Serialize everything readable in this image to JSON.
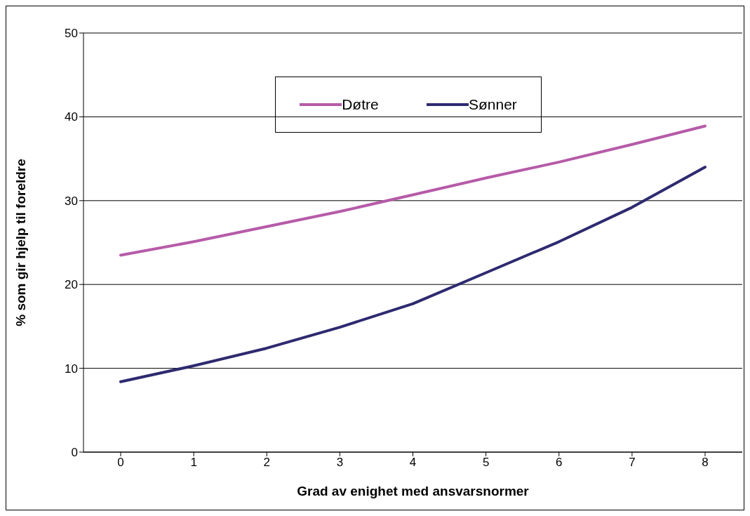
{
  "chart_data": {
    "type": "line",
    "xlabel": "Grad av enighet med ansvarsnormer",
    "ylabel": "% som gir hjelp til foreldre",
    "categories": [
      "0",
      "1",
      "2",
      "3",
      "4",
      "5",
      "6",
      "7",
      "8"
    ],
    "series": [
      {
        "name": "Døtre",
        "color": "#b65ba8",
        "values": [
          23.5,
          25.1,
          26.9,
          28.7,
          30.7,
          32.7,
          34.6,
          36.7,
          38.9
        ]
      },
      {
        "name": "Sønner",
        "color": "#2e2a70",
        "values": [
          8.4,
          10.3,
          12.4,
          14.9,
          17.7,
          21.4,
          25.1,
          29.2,
          34.0
        ]
      }
    ],
    "ylim": [
      0,
      50
    ],
    "yticks": [
      0,
      10,
      20,
      30,
      40,
      50
    ],
    "grid": "y",
    "legend": "top",
    "marker": "none",
    "line_style": "solid"
  }
}
